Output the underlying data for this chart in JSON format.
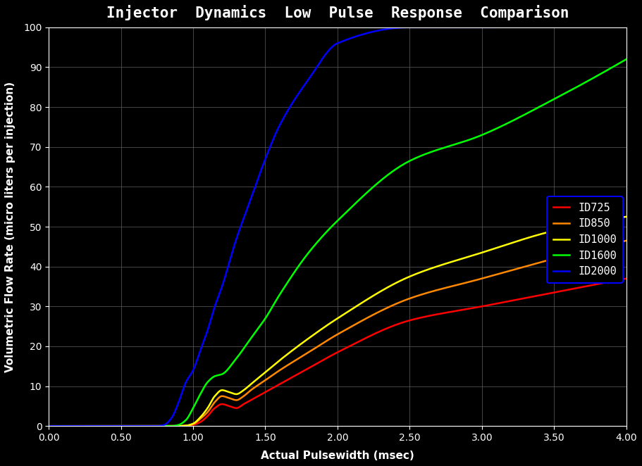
{
  "title": "Injector  Dynamics  Low  Pulse  Response  Comparison",
  "xlabel": "Actual Pulsewidth (msec)",
  "ylabel": "Volumetric Flow Rate (micro liters per injection)",
  "background_color": "#000000",
  "plot_bg_color": "#000000",
  "grid_color": "#606060",
  "text_color": "#ffffff",
  "xlim": [
    0.0,
    4.0
  ],
  "ylim": [
    0,
    100
  ],
  "xticks": [
    0.0,
    0.5,
    1.0,
    1.5,
    2.0,
    2.5,
    3.0,
    3.5,
    4.0
  ],
  "yticks": [
    0,
    10,
    20,
    30,
    40,
    50,
    60,
    70,
    80,
    90,
    100
  ],
  "series": [
    {
      "label": "ID725",
      "color": "#ff0000",
      "x_data": [
        0.0,
        0.45,
        0.9,
        0.95,
        1.0,
        1.05,
        1.1,
        1.15,
        1.2,
        1.25,
        1.3,
        1.35,
        1.4,
        1.5,
        1.6,
        1.8,
        2.0,
        2.5,
        3.0,
        3.5,
        4.0
      ],
      "y_data": [
        0.0,
        0.0,
        0.0,
        0.1,
        0.3,
        1.0,
        2.5,
        4.5,
        5.5,
        5.0,
        4.5,
        5.5,
        6.5,
        8.5,
        10.5,
        14.5,
        18.5,
        26.5,
        30.0,
        33.5,
        37.0
      ]
    },
    {
      "label": "ID850",
      "color": "#ff8800",
      "x_data": [
        0.0,
        0.45,
        0.9,
        0.95,
        1.0,
        1.05,
        1.1,
        1.15,
        1.2,
        1.25,
        1.3,
        1.35,
        1.4,
        1.5,
        1.6,
        1.8,
        2.0,
        2.5,
        3.0,
        3.5,
        4.0
      ],
      "y_data": [
        0.0,
        0.0,
        0.0,
        0.1,
        0.5,
        1.8,
        3.5,
        6.0,
        7.5,
        7.0,
        6.5,
        7.5,
        9.0,
        11.5,
        14.0,
        18.5,
        23.0,
        32.0,
        37.0,
        42.0,
        46.5
      ]
    },
    {
      "label": "ID1000",
      "color": "#ffff00",
      "x_data": [
        0.0,
        0.45,
        0.9,
        0.95,
        1.0,
        1.05,
        1.1,
        1.15,
        1.2,
        1.25,
        1.3,
        1.35,
        1.4,
        1.5,
        1.6,
        1.8,
        2.0,
        2.5,
        3.0,
        3.5,
        4.0
      ],
      "y_data": [
        0.0,
        0.0,
        0.0,
        0.1,
        0.6,
        2.2,
        4.5,
        7.5,
        9.0,
        8.5,
        8.0,
        9.0,
        10.5,
        13.5,
        16.5,
        22.0,
        27.0,
        37.5,
        43.5,
        49.0,
        52.5
      ]
    },
    {
      "label": "ID1600",
      "color": "#00ff00",
      "x_data": [
        0.0,
        0.45,
        0.85,
        0.9,
        0.95,
        1.0,
        1.05,
        1.1,
        1.15,
        1.2,
        1.3,
        1.4,
        1.5,
        1.6,
        1.8,
        2.0,
        2.5,
        3.0,
        3.5,
        4.0
      ],
      "y_data": [
        0.0,
        0.0,
        0.0,
        0.3,
        1.5,
        4.5,
        8.0,
        11.0,
        12.5,
        13.0,
        17.0,
        22.0,
        27.0,
        33.0,
        43.5,
        51.5,
        66.5,
        73.0,
        82.0,
        92.0
      ]
    },
    {
      "label": "ID2000",
      "color": "#0000ff",
      "x_data": [
        0.0,
        0.3,
        0.75,
        0.8,
        0.85,
        0.9,
        0.95,
        1.0,
        1.05,
        1.1,
        1.15,
        1.2,
        1.3,
        1.4,
        1.5,
        1.6,
        1.8,
        2.0,
        2.5,
        3.0,
        3.1
      ],
      "y_data": [
        0.0,
        0.0,
        0.0,
        0.3,
        2.0,
        6.0,
        11.0,
        14.0,
        19.0,
        24.0,
        30.0,
        35.0,
        47.0,
        57.0,
        67.0,
        75.5,
        87.0,
        96.0,
        100.0,
        100.0,
        100.0
      ]
    }
  ],
  "legend_bg": "#000000",
  "legend_edge": "#0000ff",
  "legend_text_color": "#ffffff",
  "title_fontsize": 15,
  "label_fontsize": 11,
  "tick_fontsize": 10,
  "line_width": 1.8
}
